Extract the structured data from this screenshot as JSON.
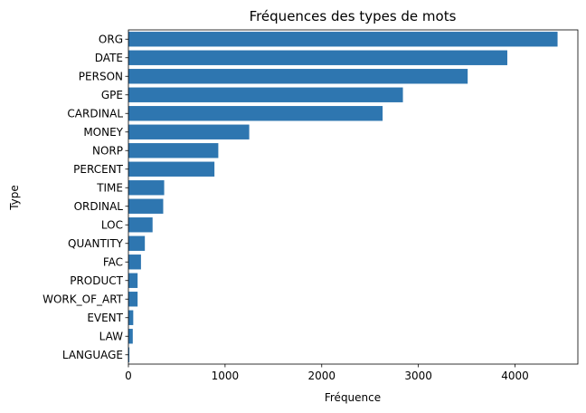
{
  "chart_data": {
    "type": "bar",
    "orientation": "horizontal",
    "title": "Fréquences des types de mots",
    "xlabel": "Fréquence",
    "ylabel": "Type",
    "categories": [
      "ORG",
      "DATE",
      "PERSON",
      "GPE",
      "CARDINAL",
      "MONEY",
      "NORP",
      "PERCENT",
      "TIME",
      "ORDINAL",
      "LOC",
      "QUANTITY",
      "FAC",
      "PRODUCT",
      "WORK_OF_ART",
      "EVENT",
      "LAW",
      "LANGUAGE"
    ],
    "values": [
      4440,
      3920,
      3510,
      2840,
      2630,
      1250,
      930,
      890,
      370,
      360,
      250,
      170,
      130,
      95,
      95,
      50,
      45,
      10
    ],
    "xlim": [
      0,
      4650
    ],
    "xticks": [
      0,
      1000,
      2000,
      3000,
      4000
    ],
    "grid": false,
    "bar_color": "#2e76b0"
  }
}
